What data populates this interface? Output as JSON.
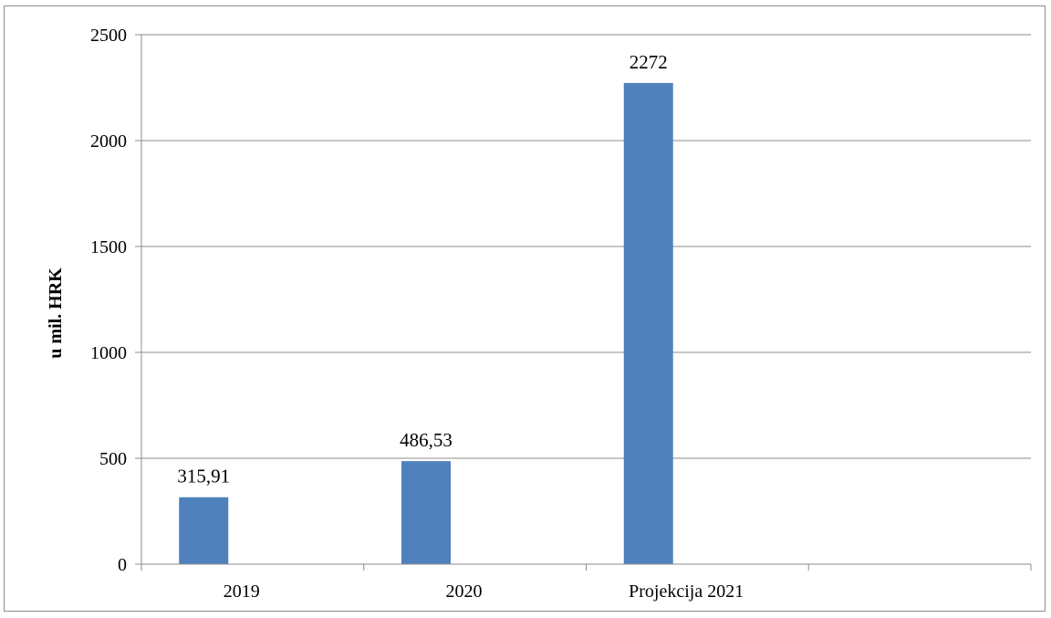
{
  "chart_data": {
    "type": "bar",
    "title": "",
    "xlabel": "",
    "ylabel": "u mil. HRK",
    "ylim": [
      0,
      2500
    ],
    "yticks": [
      0,
      500,
      1000,
      1500,
      2000,
      2500
    ],
    "categories": [
      "2019",
      "2020",
      "Projekcija 2021",
      ""
    ],
    "values": [
      315.91,
      486.53,
      2272,
      null
    ],
    "data_labels": [
      "315,91",
      "486,53",
      "2272",
      ""
    ],
    "grid": true,
    "legend": "none",
    "bar_color": "#4f81bd",
    "grid_color": "#8c8c8c"
  }
}
